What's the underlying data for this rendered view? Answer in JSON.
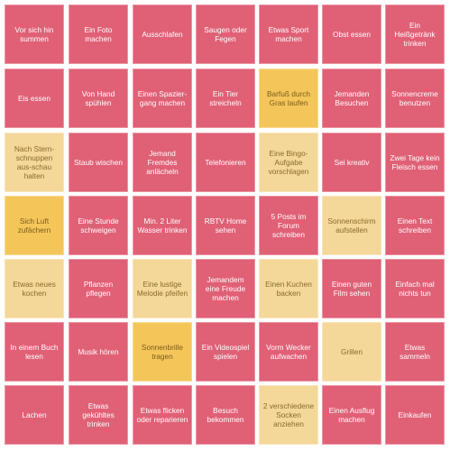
{
  "board": {
    "colors": {
      "pink": "#e06076",
      "gold": "#f4c65a",
      "beige": "#f4d899"
    },
    "rows": [
      [
        {
          "label": "Vor sich hin summen",
          "state": "pink"
        },
        {
          "label": "Ein Foto machen",
          "state": "pink"
        },
        {
          "label": "Ausschlafen",
          "state": "pink"
        },
        {
          "label": "Saugen oder Fegen",
          "state": "pink"
        },
        {
          "label": "Etwas Sport machen",
          "state": "pink"
        },
        {
          "label": "Obst essen",
          "state": "pink"
        },
        {
          "label": "Ein Heißgetränk trinken",
          "state": "pink"
        }
      ],
      [
        {
          "label": "Eis essen",
          "state": "pink"
        },
        {
          "label": "Von Hand spühlen",
          "state": "pink"
        },
        {
          "label": "Einen Spazier-gang machen",
          "state": "pink"
        },
        {
          "label": "Ein Tier streicheln",
          "state": "pink"
        },
        {
          "label": "Barfuß durch Gras laufen",
          "state": "gold"
        },
        {
          "label": "Jemanden Besuchen",
          "state": "pink"
        },
        {
          "label": "Sonnencreme benutzen",
          "state": "pink"
        }
      ],
      [
        {
          "label": "Nach Stern-schnuppen aus-schau halten",
          "state": "beige"
        },
        {
          "label": "Staub wischen",
          "state": "pink"
        },
        {
          "label": "Jemand Fremdes anlächeln",
          "state": "pink"
        },
        {
          "label": "Telefonieren",
          "state": "pink"
        },
        {
          "label": "Eine Bingo-Aufgabe vorschlagen",
          "state": "beige"
        },
        {
          "label": "Sei kreativ",
          "state": "pink"
        },
        {
          "label": "Zwei Tage kein Fleisch essen",
          "state": "pink"
        }
      ],
      [
        {
          "label": "Sich Luft zufächern",
          "state": "gold"
        },
        {
          "label": "Eine Stunde schweigen",
          "state": "pink"
        },
        {
          "label": "Min. 2 Liter Wasser trinken",
          "state": "pink"
        },
        {
          "label": "RBTV Home sehen",
          "state": "pink"
        },
        {
          "label": "5 Posts im Forum schreiben",
          "state": "pink"
        },
        {
          "label": "Sonnenschirm aufstellen",
          "state": "beige"
        },
        {
          "label": "Einen Text schreiben",
          "state": "pink"
        }
      ],
      [
        {
          "label": "Etwas neues kochen",
          "state": "beige"
        },
        {
          "label": "Pflanzen pflegen",
          "state": "pink"
        },
        {
          "label": "Eine lustige Melodie pfeifen",
          "state": "beige"
        },
        {
          "label": "Jemandem eine Freude machen",
          "state": "pink"
        },
        {
          "label": "Einen Kuchen backen",
          "state": "beige"
        },
        {
          "label": "Einen guten Film sehen",
          "state": "pink"
        },
        {
          "label": "Einfach mal nichts tun",
          "state": "pink"
        }
      ],
      [
        {
          "label": "In einem Buch lesen",
          "state": "pink"
        },
        {
          "label": "Musik hören",
          "state": "pink"
        },
        {
          "label": "Sonnenbrille tragen",
          "state": "gold"
        },
        {
          "label": "Ein Videospiel spielen",
          "state": "pink"
        },
        {
          "label": "Vorm Wecker aufwachen",
          "state": "pink"
        },
        {
          "label": "Grillen",
          "state": "beige"
        },
        {
          "label": "Etwas sammeln",
          "state": "pink"
        }
      ],
      [
        {
          "label": "Lachen",
          "state": "pink"
        },
        {
          "label": "Etwas gekühltes trinken",
          "state": "pink"
        },
        {
          "label": "Etwas flicken oder reparieren",
          "state": "pink"
        },
        {
          "label": "Besuch bekommen",
          "state": "pink"
        },
        {
          "label": "2 verschiedene Socken anziehen",
          "state": "beige"
        },
        {
          "label": "Einen Ausflug machen",
          "state": "pink"
        },
        {
          "label": "Einkaufen",
          "state": "pink"
        }
      ]
    ]
  }
}
